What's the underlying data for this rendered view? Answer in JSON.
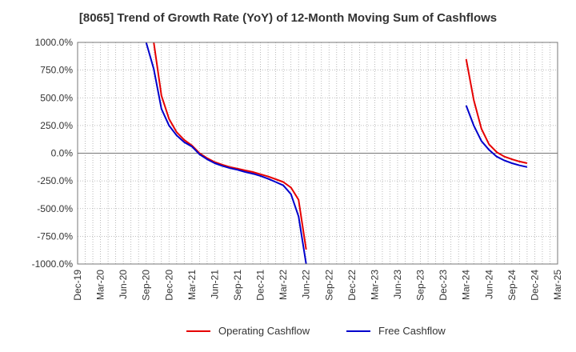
{
  "chart_data": {
    "type": "line",
    "title": "[8065]  Trend of Growth Rate (YoY) of 12-Month Moving Sum of Cashflows",
    "xlabel": "",
    "ylabel": "",
    "ylim": [
      -1000,
      1000
    ],
    "y_ticks": [
      "1000.0%",
      "750.0%",
      "500.0%",
      "250.0%",
      "0.0%",
      "-250.0%",
      "-500.0%",
      "-750.0%",
      "-1000.0%"
    ],
    "x_ticks": [
      "Dec-19",
      "Mar-20",
      "Jun-20",
      "Sep-20",
      "Dec-20",
      "Mar-21",
      "Jun-21",
      "Sep-21",
      "Dec-21",
      "Mar-22",
      "Jun-22",
      "Sep-22",
      "Dec-22",
      "Mar-23",
      "Jun-23",
      "Sep-23",
      "Dec-23",
      "Mar-24",
      "Jun-24",
      "Sep-24",
      "Dec-24",
      "Mar-25"
    ],
    "grid": true,
    "legend_position": "bottom",
    "series": [
      {
        "name": "Operating Cashflow",
        "color": "#e60000",
        "segments": [
          [
            [
              "2020-10",
              1000
            ],
            [
              "2020-11",
              520
            ],
            [
              "2020-12",
              310
            ],
            [
              "2021-01",
              190
            ],
            [
              "2021-02",
              120
            ],
            [
              "2021-03",
              70
            ],
            [
              "2021-04",
              0
            ],
            [
              "2021-05",
              -45
            ],
            [
              "2021-06",
              -80
            ],
            [
              "2021-07",
              -105
            ],
            [
              "2021-08",
              -125
            ],
            [
              "2021-09",
              -140
            ],
            [
              "2021-10",
              -155
            ],
            [
              "2021-11",
              -170
            ],
            [
              "2021-12",
              -190
            ],
            [
              "2022-01",
              -210
            ],
            [
              "2022-02",
              -235
            ],
            [
              "2022-03",
              -260
            ],
            [
              "2022-04",
              -310
            ],
            [
              "2022-05",
              -420
            ],
            [
              "2022-06",
              -870
            ]
          ],
          [
            [
              "2024-03",
              850
            ],
            [
              "2024-04",
              480
            ],
            [
              "2024-05",
              220
            ],
            [
              "2024-06",
              80
            ],
            [
              "2024-07",
              10
            ],
            [
              "2024-08",
              -30
            ],
            [
              "2024-09",
              -55
            ],
            [
              "2024-10",
              -75
            ],
            [
              "2024-11",
              -90
            ]
          ]
        ]
      },
      {
        "name": "Free Cashflow",
        "color": "#0000cc",
        "segments": [
          [
            [
              "2020-09",
              1000
            ],
            [
              "2020-10",
              760
            ],
            [
              "2020-11",
              400
            ],
            [
              "2020-12",
              250
            ],
            [
              "2021-01",
              160
            ],
            [
              "2021-02",
              100
            ],
            [
              "2021-03",
              60
            ],
            [
              "2021-04",
              -10
            ],
            [
              "2021-05",
              -55
            ],
            [
              "2021-06",
              -90
            ],
            [
              "2021-07",
              -115
            ],
            [
              "2021-08",
              -135
            ],
            [
              "2021-09",
              -150
            ],
            [
              "2021-10",
              -170
            ],
            [
              "2021-11",
              -185
            ],
            [
              "2021-12",
              -205
            ],
            [
              "2022-01",
              -230
            ],
            [
              "2022-02",
              -260
            ],
            [
              "2022-03",
              -290
            ],
            [
              "2022-04",
              -370
            ],
            [
              "2022-05",
              -570
            ],
            [
              "2022-06",
              -1000
            ]
          ],
          [
            [
              "2024-03",
              430
            ],
            [
              "2024-04",
              250
            ],
            [
              "2024-05",
              110
            ],
            [
              "2024-06",
              30
            ],
            [
              "2024-07",
              -30
            ],
            [
              "2024-08",
              -65
            ],
            [
              "2024-09",
              -90
            ],
            [
              "2024-10",
              -110
            ],
            [
              "2024-11",
              -125
            ]
          ]
        ]
      }
    ]
  }
}
